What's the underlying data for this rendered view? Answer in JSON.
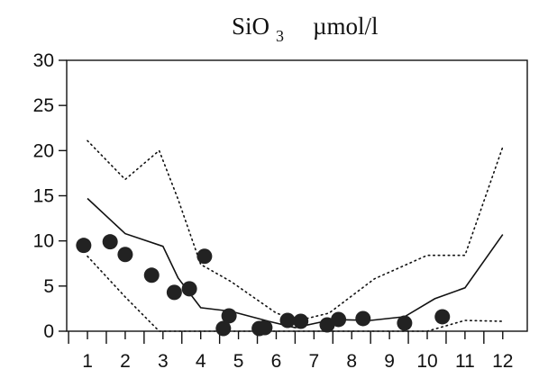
{
  "chart_data": {
    "type": "line",
    "title_parts": {
      "chem": "SiO",
      "sub": "3",
      "unit": "µmol/l"
    },
    "x": {
      "ticks": [
        1,
        2,
        3,
        4,
        5,
        6,
        7,
        8,
        9,
        10,
        11,
        12
      ],
      "lim": [
        0.45,
        12.65
      ]
    },
    "y": {
      "ticks": [
        0,
        5,
        10,
        15,
        20,
        25,
        30
      ],
      "lim": [
        0,
        30
      ]
    },
    "grid": false,
    "series": [
      {
        "style": "solid",
        "points": [
          [
            1,
            14.7
          ],
          [
            2,
            10.8
          ],
          [
            3,
            9.4
          ],
          [
            3.4,
            5.9
          ],
          [
            4,
            2.6
          ],
          [
            4.8,
            2.2
          ],
          [
            5.8,
            1.1
          ],
          [
            6.5,
            0.4
          ],
          [
            7.5,
            1.3
          ],
          [
            8.5,
            1.2
          ],
          [
            9.4,
            1.6
          ],
          [
            10.2,
            3.6
          ],
          [
            11,
            4.8
          ],
          [
            12,
            10.7
          ]
        ]
      },
      {
        "style": "dotted-upper",
        "points": [
          [
            1,
            21.1
          ],
          [
            2,
            16.8
          ],
          [
            2.9,
            20
          ],
          [
            3.4,
            14.6
          ],
          [
            4,
            7.4
          ],
          [
            4.8,
            5.5
          ],
          [
            6,
            2
          ],
          [
            6.6,
            1.2
          ],
          [
            7.4,
            2
          ],
          [
            8.6,
            5.8
          ],
          [
            10,
            8.4
          ],
          [
            11,
            8.4
          ],
          [
            12,
            20.4
          ]
        ]
      },
      {
        "style": "dotted-lower",
        "points": [
          [
            1,
            8.3
          ],
          [
            2,
            3.8
          ],
          [
            2.9,
            0
          ],
          [
            4,
            0
          ],
          [
            5,
            0
          ],
          [
            6,
            0
          ],
          [
            7,
            0
          ],
          [
            8,
            0
          ],
          [
            9,
            0
          ],
          [
            10,
            0
          ],
          [
            11,
            1.2
          ],
          [
            12,
            1.1
          ]
        ]
      },
      {
        "style": "scatter",
        "points": [
          [
            0.9,
            9.5
          ],
          [
            1.6,
            9.9
          ],
          [
            2,
            8.5
          ],
          [
            2.7,
            6.2
          ],
          [
            3.3,
            4.3
          ],
          [
            3.7,
            4.7
          ],
          [
            4.1,
            8.3
          ],
          [
            4.6,
            0.3
          ],
          [
            4.75,
            1.7
          ],
          [
            5.55,
            0.3
          ],
          [
            5.7,
            0.4
          ],
          [
            6.3,
            1.2
          ],
          [
            6.65,
            1.1
          ],
          [
            7.35,
            0.7
          ],
          [
            7.65,
            1.3
          ],
          [
            8.3,
            1.4
          ],
          [
            9.4,
            0.9
          ],
          [
            10.4,
            1.6
          ]
        ]
      }
    ]
  }
}
